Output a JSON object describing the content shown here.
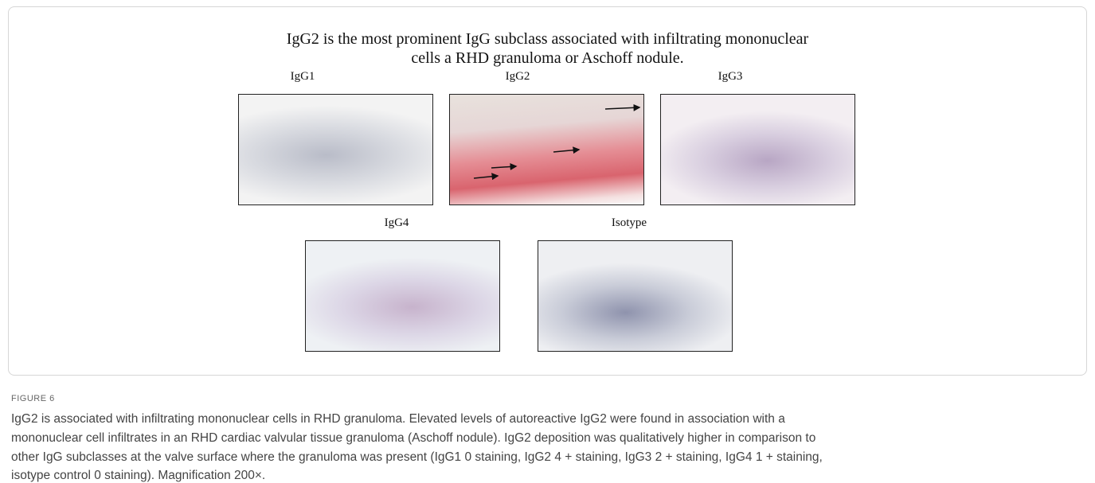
{
  "figure": {
    "title_lines": [
      "IgG2 is the most prominent IgG subclass associated with infiltrating mononuclear",
      "cells a RHD granuloma or Aschoff nodule."
    ],
    "panels": [
      {
        "label": "IgG1"
      },
      {
        "label": "IgG2"
      },
      {
        "label": "IgG3"
      },
      {
        "label": "IgG4"
      },
      {
        "label": "Isotype"
      }
    ]
  },
  "caption": {
    "label": "FIGURE 6",
    "lines": [
      "IgG2 is associated with infiltrating mononuclear cells in RHD granuloma. Elevated levels of autoreactive IgG2 were found in association with a",
      "mononuclear cell infiltrates in an RHD cardiac valvular tissue granuloma (Aschoff nodule). IgG2 deposition was qualitatively higher in comparison to",
      "other IgG subclasses at the valve surface where the granuloma was present (IgG1 0 staining, IgG2 4 + staining, IgG3 2 + staining, IgG4 1 + staining,",
      "isotype control 0 staining). Magnification 200×."
    ]
  }
}
